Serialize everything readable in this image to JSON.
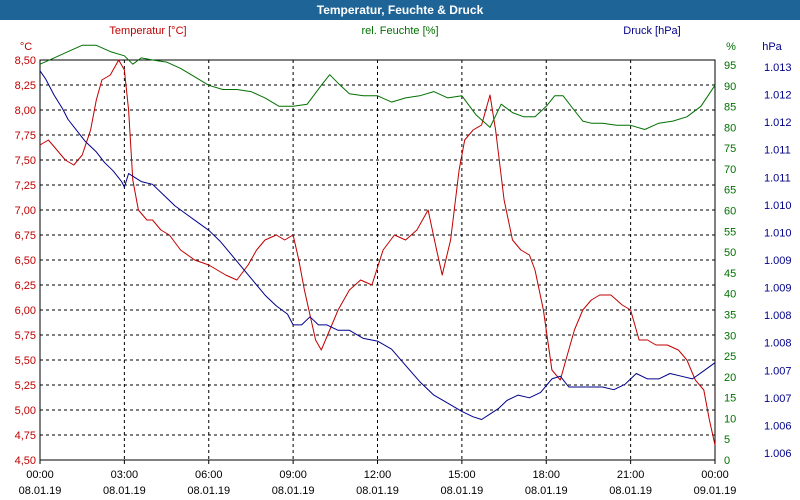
{
  "window": {
    "title": "Temperatur, Feuchte & Druck"
  },
  "chart_data": {
    "type": "line",
    "title": "Temperatur, Feuchte & Druck",
    "colors": {
      "temp": "#c00000",
      "hum": "#007000",
      "press": "#00008b",
      "grid": "#000000"
    },
    "x_ticks": [
      {
        "time": "00:00",
        "date": "08.01.19"
      },
      {
        "time": "03:00",
        "date": "08.01.19"
      },
      {
        "time": "06:00",
        "date": "08.01.19"
      },
      {
        "time": "09:00",
        "date": "08.01.19"
      },
      {
        "time": "12:00",
        "date": "08.01.19"
      },
      {
        "time": "15:00",
        "date": "08.01.19"
      },
      {
        "time": "18:00",
        "date": "08.01.19"
      },
      {
        "time": "21:00",
        "date": "08.01.19"
      },
      {
        "time": "00:00",
        "date": "09.01.19"
      }
    ],
    "xlim": [
      0,
      24
    ],
    "axes": {
      "temp": {
        "label": "Temperatur [°C]",
        "unit": "°C",
        "ylim": [
          4.5,
          8.5
        ],
        "ticks": [
          "8,50",
          "8,25",
          "8,00",
          "7,75",
          "7,50",
          "7,25",
          "7,00",
          "6,75",
          "6,50",
          "6,25",
          "6,00",
          "5,75",
          "5,50",
          "5,25",
          "5,00",
          "4,75",
          "4,50"
        ]
      },
      "hum": {
        "label": "rel. Feuchte [%]",
        "unit": "%",
        "ylim": [
          0,
          95
        ],
        "ticks": [
          "95",
          "90",
          "85",
          "80",
          "75",
          "70",
          "65",
          "60",
          "55",
          "50",
          "45",
          "40",
          "35",
          "30",
          "25",
          "20",
          "15",
          "10",
          "5",
          "0"
        ]
      },
      "press": {
        "label": "Druck [hPa]",
        "unit": "hPa",
        "ylim": [
          1005.8,
          1013.2
        ],
        "ticks": [
          "1.013",
          "1.012",
          "1.012",
          "1.011",
          "1.011",
          "1.010",
          "1.010",
          "1.009",
          "1.009",
          "1.008",
          "1.008",
          "1.007",
          "1.007",
          "1.006",
          "1.006"
        ]
      }
    },
    "series": [
      {
        "name": "Temperatur",
        "axis": "temp",
        "color": "#c00000",
        "x": [
          0,
          0.3,
          0.6,
          0.9,
          1.2,
          1.5,
          1.8,
          2.0,
          2.2,
          2.5,
          2.8,
          3.0,
          3.15,
          3.3,
          3.5,
          3.8,
          4.0,
          4.3,
          4.6,
          5.0,
          5.5,
          6.0,
          6.3,
          6.6,
          7.0,
          7.4,
          7.7,
          8.0,
          8.4,
          8.7,
          9.0,
          9.2,
          9.4,
          9.8,
          10.0,
          10.3,
          10.6,
          11.0,
          11.4,
          11.8,
          12.2,
          12.6,
          13.0,
          13.4,
          13.8,
          14.1,
          14.3,
          14.6,
          14.9,
          15.1,
          15.4,
          15.7,
          16.0,
          16.2,
          16.5,
          16.8,
          17.1,
          17.4,
          17.6,
          17.9,
          18.2,
          18.5,
          18.7,
          19.0,
          19.3,
          19.6,
          19.9,
          20.3,
          20.7,
          21.0,
          21.3,
          21.6,
          21.9,
          22.3,
          22.7,
          23.0,
          23.3,
          23.6,
          23.8,
          24.0
        ],
        "y": [
          7.65,
          7.7,
          7.6,
          7.5,
          7.45,
          7.55,
          7.8,
          8.1,
          8.3,
          8.35,
          8.5,
          8.4,
          8.0,
          7.3,
          7.0,
          6.9,
          6.9,
          6.8,
          6.75,
          6.6,
          6.5,
          6.45,
          6.4,
          6.35,
          6.3,
          6.45,
          6.6,
          6.7,
          6.75,
          6.7,
          6.75,
          6.5,
          6.2,
          5.7,
          5.6,
          5.8,
          6.0,
          6.2,
          6.3,
          6.25,
          6.6,
          6.75,
          6.7,
          6.8,
          7.0,
          6.6,
          6.35,
          6.7,
          7.4,
          7.7,
          7.8,
          7.85,
          8.15,
          7.8,
          7.1,
          6.7,
          6.6,
          6.55,
          6.4,
          6.0,
          5.4,
          5.3,
          5.5,
          5.8,
          6.0,
          6.1,
          6.15,
          6.15,
          6.05,
          6.0,
          5.7,
          5.7,
          5.65,
          5.65,
          5.6,
          5.5,
          5.3,
          5.2,
          4.9,
          4.65
        ]
      },
      {
        "name": "rel. Feuchte",
        "axis": "hum",
        "color": "#007000",
        "x": [
          0,
          0.5,
          1.0,
          1.5,
          2.0,
          2.5,
          3.0,
          3.3,
          3.6,
          4.0,
          4.5,
          5.0,
          5.5,
          6.0,
          6.5,
          7.0,
          7.5,
          8.0,
          8.5,
          9.0,
          9.5,
          10.0,
          10.3,
          10.6,
          11.0,
          11.5,
          12.0,
          12.5,
          13.0,
          13.5,
          14.0,
          14.5,
          15.0,
          15.5,
          16.0,
          16.4,
          16.8,
          17.2,
          17.6,
          18.0,
          18.3,
          18.6,
          19.0,
          19.3,
          19.6,
          20.0,
          20.5,
          21.0,
          21.5,
          22.0,
          22.5,
          23.0,
          23.5,
          24.0
        ],
        "y": [
          94,
          95.5,
          97,
          98.5,
          98.5,
          97,
          96,
          94,
          95.5,
          95,
          94.5,
          93,
          91,
          89,
          88,
          88,
          87.5,
          86,
          84,
          84,
          84.5,
          89,
          91.5,
          89.5,
          87,
          86.5,
          86.5,
          85,
          86,
          86.5,
          87.5,
          86,
          86.5,
          82,
          79,
          84.5,
          82.5,
          81.5,
          81.5,
          84,
          86.5,
          86.5,
          83,
          80.5,
          80,
          80,
          79.5,
          79.5,
          78.5,
          80,
          80.5,
          81.5,
          84,
          89
        ]
      },
      {
        "name": "Druck",
        "axis": "press",
        "color": "#00008b",
        "x": [
          0,
          0.2,
          0.5,
          0.8,
          1.0,
          1.3,
          1.6,
          2.0,
          2.3,
          2.6,
          2.9,
          3.0,
          3.15,
          3.3,
          3.6,
          4.0,
          4.4,
          4.8,
          5.2,
          5.6,
          6.0,
          6.4,
          6.8,
          7.2,
          7.6,
          8.0,
          8.4,
          8.8,
          9.0,
          9.3,
          9.6,
          9.9,
          10.2,
          10.6,
          11.0,
          11.5,
          12.0,
          12.5,
          13.0,
          13.5,
          14.0,
          14.5,
          15.0,
          15.4,
          15.7,
          16.0,
          16.3,
          16.6,
          17.0,
          17.4,
          17.8,
          18.2,
          18.5,
          18.8,
          19.2,
          19.6,
          20.0,
          20.4,
          20.8,
          21.2,
          21.6,
          22.0,
          22.4,
          22.8,
          23.2,
          23.6,
          24.0
        ],
        "y": [
          1013.0,
          1012.85,
          1012.55,
          1012.3,
          1012.1,
          1011.9,
          1011.7,
          1011.5,
          1011.3,
          1011.15,
          1010.95,
          1010.85,
          1011.1,
          1011.05,
          1010.95,
          1010.9,
          1010.7,
          1010.5,
          1010.35,
          1010.2,
          1010.05,
          1009.85,
          1009.6,
          1009.35,
          1009.1,
          1008.85,
          1008.65,
          1008.5,
          1008.3,
          1008.3,
          1008.45,
          1008.3,
          1008.3,
          1008.2,
          1008.2,
          1008.05,
          1008.0,
          1007.85,
          1007.55,
          1007.25,
          1007.0,
          1006.85,
          1006.7,
          1006.6,
          1006.55,
          1006.65,
          1006.75,
          1006.9,
          1007.0,
          1006.95,
          1007.05,
          1007.3,
          1007.35,
          1007.15,
          1007.15,
          1007.15,
          1007.15,
          1007.1,
          1007.2,
          1007.4,
          1007.3,
          1007.3,
          1007.4,
          1007.35,
          1007.3,
          1007.45,
          1007.6
        ]
      }
    ]
  }
}
